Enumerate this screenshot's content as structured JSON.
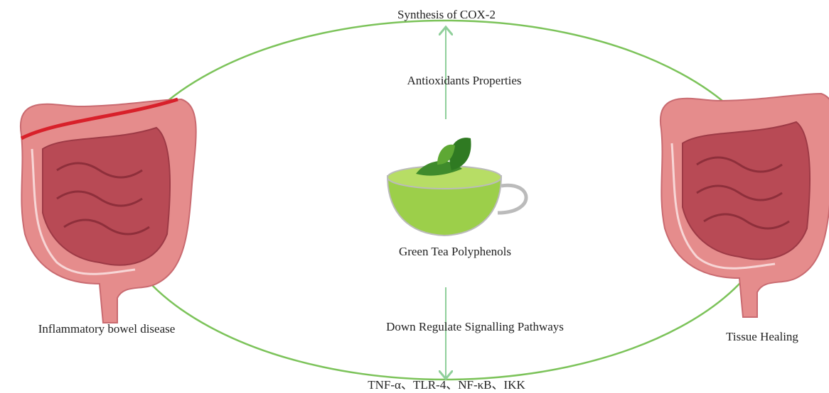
{
  "nodes": [
    {
      "label": "Synthesis of COX-2"
    },
    {
      "label": "Antioxidants Properties"
    },
    {
      "label": "Green Tea Polyphenols"
    },
    {
      "label": "Down Regulate Signalling Pathways"
    },
    {
      "label": "TNF-α、TLR-4、NF-κB、IKK"
    },
    {
      "label": "Inflammatory bowel disease"
    },
    {
      "label": "Tissue Healing"
    }
  ]
}
